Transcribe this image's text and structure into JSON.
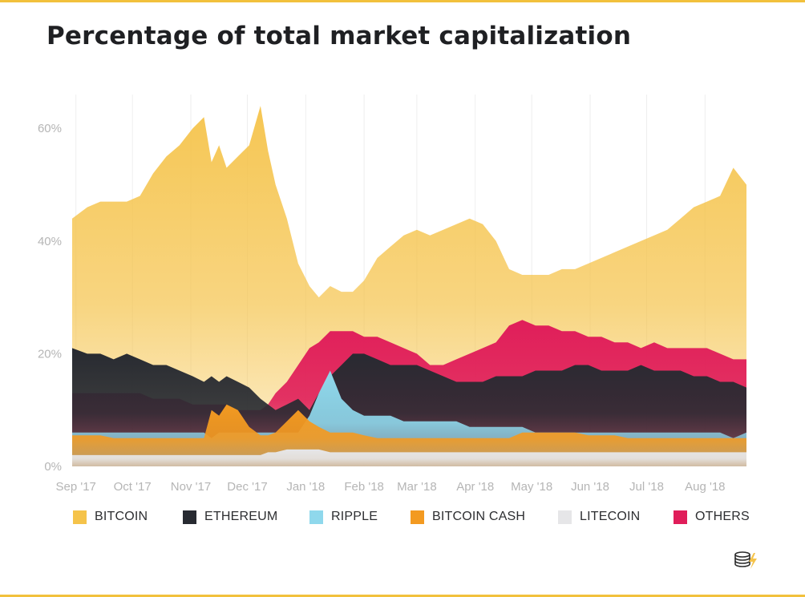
{
  "title": "Percentage of total market capitalization",
  "logo_icon": "coin-stack-lightning-logo",
  "colors": {
    "BITCOIN": "#f5c34a",
    "ETHEREUM": "#272a31",
    "RIPPLE": "#8fd8ec",
    "BITCOIN CASH": "#f39a21",
    "LITECOIN": "#e6e6e8",
    "OTHERS": "#e01e5a",
    "grid": "#eeeeee",
    "tick_text": "#b5b5b5",
    "frame": "#f2c13c"
  },
  "chart_data": {
    "type": "area",
    "title": "Percentage of total market capitalization",
    "stacked": false,
    "ylim": [
      0,
      66
    ],
    "yticks": [
      "0%",
      "20%",
      "40%",
      "60%"
    ],
    "ytick_values": [
      0,
      20,
      40,
      60
    ],
    "grid": true,
    "legend_position": "bottom",
    "x": [
      "2017-08-30",
      "2017-09-07",
      "2017-09-14",
      "2017-09-21",
      "2017-09-28",
      "2017-10-05",
      "2017-10-12",
      "2017-10-19",
      "2017-10-26",
      "2017-11-02",
      "2017-11-08",
      "2017-11-12",
      "2017-11-16",
      "2017-11-20",
      "2017-11-26",
      "2017-12-02",
      "2017-12-08",
      "2017-12-12",
      "2017-12-16",
      "2017-12-22",
      "2017-12-28",
      "2018-01-03",
      "2018-01-08",
      "2018-01-14",
      "2018-01-20",
      "2018-01-26",
      "2018-02-01",
      "2018-02-08",
      "2018-02-15",
      "2018-02-22",
      "2018-03-01",
      "2018-03-08",
      "2018-03-15",
      "2018-03-22",
      "2018-03-29",
      "2018-04-05",
      "2018-04-12",
      "2018-04-19",
      "2018-04-26",
      "2018-05-03",
      "2018-05-10",
      "2018-05-17",
      "2018-05-24",
      "2018-05-31",
      "2018-06-07",
      "2018-06-14",
      "2018-06-21",
      "2018-06-28",
      "2018-07-05",
      "2018-07-12",
      "2018-07-19",
      "2018-07-26",
      "2018-08-02",
      "2018-08-09",
      "2018-08-16",
      "2018-08-23"
    ],
    "xticks": [
      {
        "date": "2017-09-01",
        "label": "Sep '17"
      },
      {
        "date": "2017-10-01",
        "label": "Oct '17"
      },
      {
        "date": "2017-11-01",
        "label": "Nov '17"
      },
      {
        "date": "2017-12-01",
        "label": "Dec '17"
      },
      {
        "date": "2018-01-01",
        "label": "Jan '18"
      },
      {
        "date": "2018-02-01",
        "label": "Feb '18"
      },
      {
        "date": "2018-03-01",
        "label": "Mar '18"
      },
      {
        "date": "2018-04-01",
        "label": "Apr '18"
      },
      {
        "date": "2018-05-01",
        "label": "May '18"
      },
      {
        "date": "2018-06-01",
        "label": "Jun '18"
      },
      {
        "date": "2018-07-01",
        "label": "Jul '18"
      },
      {
        "date": "2018-08-01",
        "label": "Aug '18"
      }
    ],
    "series": [
      {
        "name": "BITCOIN",
        "values": [
          44,
          46,
          47,
          47,
          47,
          48,
          52,
          55,
          57,
          60,
          62,
          54,
          57,
          53,
          55,
          57,
          64,
          56,
          50,
          44,
          36,
          32,
          30,
          32,
          31,
          31,
          33,
          37,
          39,
          41,
          42,
          41,
          42,
          43,
          44,
          43,
          40,
          35,
          34,
          34,
          34,
          35,
          35,
          36,
          37,
          38,
          39,
          40,
          41,
          42,
          44,
          46,
          47,
          48,
          53,
          50
        ]
      },
      {
        "name": "ETHEREUM",
        "values": [
          21,
          20,
          20,
          19,
          20,
          19,
          18,
          18,
          17,
          16,
          15,
          16,
          15,
          16,
          15,
          14,
          12,
          11,
          10,
          11,
          12,
          10,
          13,
          16,
          18,
          20,
          20,
          19,
          18,
          18,
          18,
          17,
          16,
          15,
          15,
          15,
          16,
          16,
          16,
          17,
          17,
          17,
          18,
          18,
          17,
          17,
          17,
          18,
          17,
          17,
          17,
          16,
          16,
          15,
          15,
          14
        ]
      },
      {
        "name": "RIPPLE",
        "values": [
          6,
          6,
          6,
          6,
          6,
          6,
          6,
          6,
          6,
          6,
          6,
          5,
          6,
          6,
          6,
          6,
          6,
          6,
          6,
          6,
          6,
          9,
          13,
          17,
          12,
          10,
          9,
          9,
          9,
          8,
          8,
          8,
          8,
          8,
          7,
          7,
          7,
          7,
          7,
          6,
          6,
          6,
          6,
          6,
          6,
          6,
          6,
          6,
          6,
          6,
          6,
          6,
          6,
          6,
          5,
          6
        ]
      },
      {
        "name": "BITCOIN CASH",
        "values": [
          5.5,
          5.5,
          5.5,
          5,
          5,
          5,
          5,
          5,
          5,
          5,
          5,
          10,
          9,
          11,
          10,
          7,
          5.5,
          5.5,
          6,
          8,
          10,
          8,
          7,
          6,
          6,
          6,
          5.5,
          5,
          5,
          5,
          5,
          5,
          5,
          5,
          5,
          5,
          5,
          5,
          6,
          6,
          6,
          6,
          6,
          5.5,
          5.5,
          5.5,
          5,
          5,
          5,
          5,
          5,
          5,
          5,
          5,
          5,
          5
        ]
      },
      {
        "name": "LITECOIN",
        "values": [
          2,
          2,
          2,
          2,
          2,
          2,
          2,
          2,
          2,
          2,
          2,
          2,
          2,
          2,
          2,
          2,
          2,
          2.5,
          2.5,
          3,
          3,
          3,
          3,
          2.5,
          2.5,
          2.5,
          2.5,
          2.5,
          2.5,
          2.5,
          2.5,
          2.5,
          2.5,
          2.5,
          2.5,
          2.5,
          2.5,
          2.5,
          2.5,
          2.5,
          2.5,
          2.5,
          2.5,
          2.5,
          2.5,
          2.5,
          2.5,
          2.5,
          2.5,
          2.5,
          2.5,
          2.5,
          2.5,
          2.5,
          2.5,
          2.5
        ]
      },
      {
        "name": "OTHERS",
        "values": [
          13,
          13,
          13,
          13,
          13,
          13,
          12,
          12,
          12,
          11,
          11,
          11,
          11,
          11,
          10,
          10,
          10,
          11,
          13,
          15,
          18,
          21,
          22,
          24,
          24,
          24,
          23,
          23,
          22,
          21,
          20,
          18,
          18,
          19,
          20,
          21,
          22,
          25,
          26,
          25,
          25,
          24,
          24,
          23,
          23,
          22,
          22,
          21,
          22,
          21,
          21,
          21,
          21,
          20,
          19,
          19
        ]
      }
    ]
  },
  "legend": [
    {
      "label": "BITCOIN"
    },
    {
      "label": "ETHEREUM"
    },
    {
      "label": "RIPPLE"
    },
    {
      "label": "BITCOIN CASH"
    },
    {
      "label": "LITECOIN"
    },
    {
      "label": "OTHERS"
    }
  ]
}
